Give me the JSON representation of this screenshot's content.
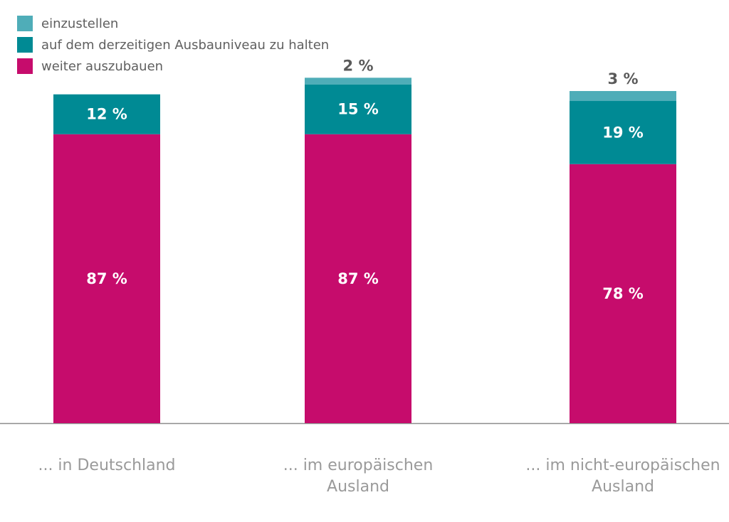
{
  "chart_data": {
    "type": "bar",
    "stacked": true,
    "categories": [
      [
        "... in Deutschland"
      ],
      [
        "... im europäischen",
        "Ausland"
      ],
      [
        "... im nicht-europäischen",
        "Ausland"
      ]
    ],
    "series": [
      {
        "name": "weiter auszubauen",
        "color": "#c60c6c",
        "values": [
          87,
          87,
          78
        ],
        "labels": [
          "87 %",
          "87 %",
          "78 %"
        ]
      },
      {
        "name": "auf dem derzeitigen Ausbauniveau zu halten",
        "color": "#008a94",
        "values": [
          12,
          15,
          19
        ],
        "labels": [
          "12 %",
          "15 %",
          "19 %"
        ]
      },
      {
        "name": "einzustellen",
        "color": "#4fadb8",
        "values": [
          0,
          2,
          3
        ],
        "labels": [
          "",
          "2 %",
          "3 %"
        ]
      }
    ],
    "legend": {
      "placement": "top-left",
      "order": [
        "einzustellen",
        "auf dem derzeitigen Ausbauniveau zu halten",
        "weiter auszubauen"
      ]
    },
    "ylim": [
      0,
      100
    ],
    "grid": false,
    "title": "",
    "xlabel": "",
    "ylabel": ""
  }
}
